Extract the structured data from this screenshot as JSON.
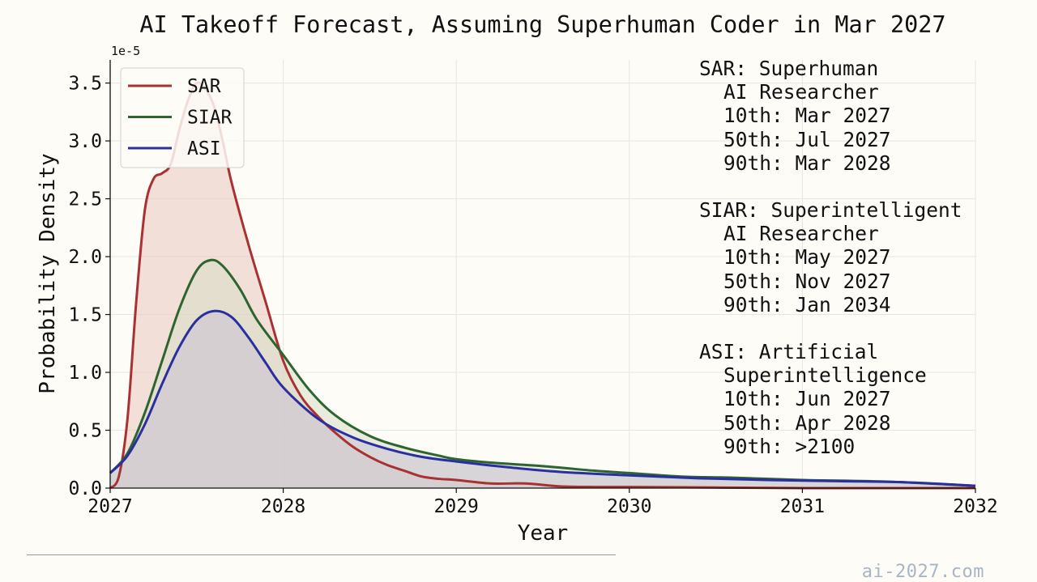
{
  "chart_data": {
    "type": "area",
    "title": "AI Takeoff Forecast, Assuming Superhuman Coder in Mar 2027",
    "xlabel": "Year",
    "ylabel": "Probability Density",
    "y_scale_label": "1e-5",
    "xlim": [
      2027,
      2032
    ],
    "ylim": [
      0,
      3.7
    ],
    "x_ticks": [
      "2027",
      "2028",
      "2029",
      "2030",
      "2031",
      "2032"
    ],
    "y_ticks": [
      "0.0",
      "0.5",
      "1.0",
      "1.5",
      "2.0",
      "2.5",
      "3.0",
      "3.5"
    ],
    "grid": true,
    "legend_position": "top-left",
    "series": [
      {
        "name": "SAR",
        "color": "#a83232",
        "fill": "#e8c6c0",
        "points": [
          [
            2027.0,
            0.0
          ],
          [
            2027.05,
            0.1
          ],
          [
            2027.1,
            0.6
          ],
          [
            2027.15,
            1.6
          ],
          [
            2027.2,
            2.4
          ],
          [
            2027.25,
            2.67
          ],
          [
            2027.3,
            2.72
          ],
          [
            2027.35,
            2.8
          ],
          [
            2027.4,
            3.1
          ],
          [
            2027.45,
            3.35
          ],
          [
            2027.5,
            3.5
          ],
          [
            2027.55,
            3.45
          ],
          [
            2027.6,
            3.3
          ],
          [
            2027.65,
            3.0
          ],
          [
            2027.7,
            2.65
          ],
          [
            2027.8,
            2.1
          ],
          [
            2027.9,
            1.6
          ],
          [
            2028.0,
            1.1
          ],
          [
            2028.1,
            0.8
          ],
          [
            2028.2,
            0.62
          ],
          [
            2028.3,
            0.48
          ],
          [
            2028.4,
            0.36
          ],
          [
            2028.5,
            0.27
          ],
          [
            2028.6,
            0.2
          ],
          [
            2028.7,
            0.15
          ],
          [
            2028.8,
            0.1
          ],
          [
            2028.9,
            0.08
          ],
          [
            2029.0,
            0.07
          ],
          [
            2029.2,
            0.04
          ],
          [
            2029.4,
            0.04
          ],
          [
            2029.6,
            0.015
          ],
          [
            2029.8,
            0.01
          ],
          [
            2030.0,
            0.01
          ],
          [
            2030.5,
            0.005
          ],
          [
            2031.0,
            0.0
          ],
          [
            2032.0,
            0.0
          ]
        ]
      },
      {
        "name": "SIAR",
        "color": "#2e6430",
        "fill": "#d8dcc6",
        "points": [
          [
            2027.0,
            0.13
          ],
          [
            2027.1,
            0.3
          ],
          [
            2027.2,
            0.65
          ],
          [
            2027.3,
            1.1
          ],
          [
            2027.4,
            1.55
          ],
          [
            2027.5,
            1.88
          ],
          [
            2027.58,
            1.97
          ],
          [
            2027.65,
            1.92
          ],
          [
            2027.75,
            1.72
          ],
          [
            2027.85,
            1.45
          ],
          [
            2028.0,
            1.15
          ],
          [
            2028.15,
            0.85
          ],
          [
            2028.3,
            0.63
          ],
          [
            2028.5,
            0.45
          ],
          [
            2028.7,
            0.35
          ],
          [
            2028.9,
            0.28
          ],
          [
            2029.0,
            0.25
          ],
          [
            2029.2,
            0.22
          ],
          [
            2029.5,
            0.19
          ],
          [
            2029.8,
            0.15
          ],
          [
            2030.0,
            0.13
          ],
          [
            2030.3,
            0.1
          ],
          [
            2030.6,
            0.09
          ],
          [
            2031.0,
            0.07
          ],
          [
            2031.5,
            0.055
          ],
          [
            2032.0,
            0.02
          ]
        ]
      },
      {
        "name": "ASI",
        "color": "#2a2fa0",
        "fill": "#c9c2d4",
        "points": [
          [
            2027.0,
            0.13
          ],
          [
            2027.1,
            0.28
          ],
          [
            2027.2,
            0.55
          ],
          [
            2027.3,
            0.9
          ],
          [
            2027.4,
            1.22
          ],
          [
            2027.5,
            1.45
          ],
          [
            2027.6,
            1.53
          ],
          [
            2027.7,
            1.48
          ],
          [
            2027.8,
            1.3
          ],
          [
            2027.9,
            1.08
          ],
          [
            2028.0,
            0.87
          ],
          [
            2028.2,
            0.6
          ],
          [
            2028.4,
            0.44
          ],
          [
            2028.6,
            0.34
          ],
          [
            2028.8,
            0.27
          ],
          [
            2029.0,
            0.23
          ],
          [
            2029.3,
            0.18
          ],
          [
            2029.6,
            0.14
          ],
          [
            2030.0,
            0.11
          ],
          [
            2030.4,
            0.085
          ],
          [
            2030.8,
            0.07
          ],
          [
            2031.2,
            0.06
          ],
          [
            2031.6,
            0.05
          ],
          [
            2032.0,
            0.02
          ]
        ]
      }
    ]
  },
  "annotations": [
    {
      "head": "SAR: Superhuman",
      "lines": [
        "AI Researcher",
        "10th: Mar 2027",
        "50th: Jul 2027",
        "90th: Mar 2028"
      ]
    },
    {
      "head": "SIAR: Superintelligent",
      "lines": [
        "AI Researcher",
        "10th: May 2027",
        "50th: Nov 2027",
        "90th: Jan 2034"
      ]
    },
    {
      "head": "ASI: Artificial",
      "lines": [
        "Superintelligence",
        "10th: Jun 2027",
        "50th: Apr 2028",
        "90th: >2100"
      ]
    }
  ],
  "watermark": "ai-2027.com"
}
